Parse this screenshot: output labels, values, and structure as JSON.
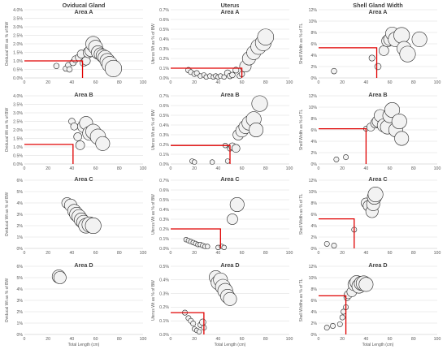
{
  "figure": {
    "rows": [
      "Area A",
      "Area B",
      "Area C",
      "Area D"
    ],
    "column_titles": [
      "Oviducal Gland",
      "Uterus",
      "Shell Gland Width"
    ],
    "x_axis_label": "Total Length (cm)",
    "colors": {
      "bubble_fill": "#f2f2f2",
      "bubble_stroke": "#262626",
      "reference_line": "#e00000",
      "grid": "#d9d9d9",
      "text": "#404040"
    }
  },
  "chart_data": [
    {
      "type": "scatter",
      "title": "Area A",
      "column_title": "Oviducal Gland",
      "xlabel": "",
      "ylabel": "Oviducal Wt as % of BW",
      "xlim": [
        0,
        100
      ],
      "ylim": [
        0,
        4
      ],
      "ytick_format": "1pct",
      "x": [
        27,
        35,
        37,
        38,
        41,
        43,
        46,
        48,
        50,
        52,
        54,
        56,
        58,
        60,
        62,
        64,
        66,
        68,
        70,
        72,
        75
      ],
      "y": [
        0.7,
        0.55,
        0.75,
        0.5,
        0.9,
        1.1,
        1.2,
        1.4,
        0.9,
        1.0,
        1.5,
        1.6,
        2.0,
        1.8,
        1.5,
        1.4,
        1.3,
        1.2,
        1.0,
        0.8,
        0.55
      ],
      "sizes": [
        1,
        1,
        1,
        1,
        1.2,
        1.3,
        1.4,
        1.6,
        1.5,
        1.7,
        2.2,
        2.5,
        3.2,
        3.0,
        2.8,
        2.6,
        2.8,
        3.0,
        3.2,
        3.4,
        3.6
      ],
      "ref": {
        "x": 49,
        "y": 1.0
      }
    },
    {
      "type": "scatter",
      "title": "Area A",
      "column_title": "Uterus",
      "xlabel": "",
      "ylabel": "Uterus Wt as % of BW",
      "xlim": [
        0,
        100
      ],
      "ylim": [
        0,
        0.7
      ],
      "ytick_format": "1pct",
      "x": [
        15,
        17,
        20,
        22,
        25,
        28,
        30,
        33,
        36,
        38,
        40,
        42,
        45,
        48,
        50,
        52,
        55,
        58,
        60,
        63,
        66,
        70,
        74,
        78,
        80
      ],
      "y": [
        0.08,
        0.06,
        0.04,
        0.05,
        0.02,
        0.03,
        0.01,
        0.02,
        0.01,
        0.02,
        0.01,
        0.02,
        0.01,
        0.05,
        0.02,
        0.03,
        0.08,
        0.02,
        0.04,
        0.12,
        0.2,
        0.26,
        0.32,
        0.36,
        0.42
      ],
      "sizes": [
        1,
        0.9,
        0.9,
        0.9,
        0.8,
        0.8,
        0.8,
        0.8,
        0.8,
        0.8,
        0.8,
        0.8,
        0.8,
        1.2,
        1,
        1,
        1.1,
        0.9,
        1,
        2.4,
        2.8,
        3.0,
        3.3,
        3.4,
        3.5
      ],
      "ref": {
        "x": 60,
        "y": 0.1
      }
    },
    {
      "type": "scatter",
      "title": "Area A",
      "column_title": "Shell Gland Width",
      "xlabel": "",
      "ylabel": "Shell Width as % of TL",
      "xlim": [
        0,
        100
      ],
      "ylim": [
        0,
        12
      ],
      "ytick_format": "0pct",
      "x": [
        13,
        45,
        50,
        55,
        58,
        60,
        62,
        65,
        70,
        72,
        75,
        85
      ],
      "y": [
        1.2,
        3.5,
        2.0,
        4.8,
        6.5,
        6.8,
        7.8,
        6.8,
        7.5,
        5.2,
        4.2,
        6.8
      ],
      "sizes": [
        1,
        1.1,
        1.2,
        2.0,
        2.4,
        2.6,
        2.8,
        3.2,
        3.4,
        3.0,
        3.4,
        3.2
      ],
      "ref": {
        "x": 49,
        "y": 5.3
      }
    },
    {
      "type": "scatter",
      "title": "Area B",
      "column_title": "",
      "xlabel": "",
      "ylabel": "Oviducal Wt as % of BW",
      "xlim": [
        0,
        100
      ],
      "ylim": [
        0,
        4
      ],
      "ytick_format": "1pct",
      "x": [
        40,
        42,
        45,
        47,
        50,
        52,
        55,
        58,
        62,
        66
      ],
      "y": [
        2.5,
        2.2,
        1.6,
        1.1,
        2.2,
        2.4,
        1.8,
        1.9,
        1.6,
        1.2
      ],
      "sizes": [
        1.2,
        1.4,
        1.6,
        1.8,
        2.6,
        2.8,
        3.0,
        3.2,
        3.3,
        3.0
      ],
      "ref": {
        "x": 41,
        "y": 1.15
      }
    },
    {
      "type": "scatter",
      "title": "Area B",
      "column_title": "",
      "xlabel": "",
      "ylabel": "Uterus Wt as % of BW",
      "xlim": [
        0,
        100
      ],
      "ylim": [
        0,
        0.7
      ],
      "ytick_format": "1pct",
      "x": [
        18,
        20,
        35,
        46,
        48,
        50,
        52,
        55,
        57,
        60,
        63,
        66,
        70,
        72,
        75
      ],
      "y": [
        0.03,
        0.02,
        0.02,
        0.19,
        0.03,
        0.16,
        0.18,
        0.16,
        0.3,
        0.34,
        0.38,
        0.42,
        0.46,
        0.35,
        0.62
      ],
      "sizes": [
        0.8,
        0.8,
        0.8,
        0.8,
        0.8,
        1.0,
        1.4,
        1.6,
        2.2,
        2.6,
        2.8,
        3.0,
        3.2,
        3.0,
        3.4
      ],
      "ref": {
        "x": 50,
        "y": 0.19
      }
    },
    {
      "type": "scatter",
      "title": "Area B",
      "column_title": "",
      "xlabel": "",
      "ylabel": "Shell Width as % of TL",
      "xlim": [
        0,
        100
      ],
      "ylim": [
        0,
        12
      ],
      "ytick_format": "0pct",
      "x": [
        15,
        23,
        40,
        44,
        48,
        50,
        52,
        55,
        58,
        60,
        62,
        65,
        68,
        70
      ],
      "y": [
        0.8,
        1.2,
        6.2,
        6.5,
        7.2,
        7.5,
        8.5,
        6.8,
        6.5,
        8.5,
        9.5,
        6.0,
        7.5,
        4.5
      ],
      "sizes": [
        0.9,
        0.9,
        0.9,
        1.6,
        2.0,
        2.4,
        2.6,
        2.8,
        3.0,
        3.0,
        3.2,
        3.0,
        3.2,
        3.0
      ],
      "ref": {
        "x": 40,
        "y": 6.2
      }
    },
    {
      "type": "scatter",
      "title": "Area C",
      "column_title": "",
      "xlabel": "",
      "ylabel": "Oviducal Wt as % of BW",
      "xlim": [
        0,
        100
      ],
      "ylim": [
        0,
        6
      ],
      "ytick_format": "0pct",
      "x": [
        36,
        39,
        42,
        44,
        46,
        48,
        50,
        52,
        55,
        58
      ],
      "y": [
        4.0,
        3.8,
        3.3,
        3.0,
        2.8,
        2.5,
        2.3,
        2.0,
        2.1,
        2.0
      ],
      "sizes": [
        2.2,
        2.6,
        2.8,
        3.0,
        3.0,
        3.0,
        3.0,
        3.2,
        3.3,
        3.4
      ],
      "ref": null
    },
    {
      "type": "scatter",
      "title": "Area C",
      "column_title": "",
      "xlabel": "",
      "ylabel": "Uterus Wt as % of BW",
      "xlim": [
        0,
        100
      ],
      "ylim": [
        0,
        0.7
      ],
      "ytick_format": "1pct",
      "x": [
        13,
        15,
        17,
        19,
        21,
        23,
        25,
        27,
        29,
        31,
        40,
        43,
        45,
        52,
        56
      ],
      "y": [
        0.09,
        0.08,
        0.07,
        0.06,
        0.05,
        0.04,
        0.04,
        0.03,
        0.02,
        0.02,
        0.01,
        0.02,
        0.01,
        0.3,
        0.45
      ],
      "sizes": [
        0.8,
        0.8,
        0.8,
        0.8,
        0.8,
        0.8,
        0.8,
        0.8,
        0.8,
        0.8,
        0.8,
        0.8,
        0.8,
        2.2,
        3.0
      ],
      "ref": {
        "x": 42,
        "y": 0.2
      }
    },
    {
      "type": "scatter",
      "title": "Area C",
      "column_title": "",
      "xlabel": "",
      "ylabel": "Shell Width as % of TL",
      "xlim": [
        0,
        100
      ],
      "ylim": [
        0,
        12
      ],
      "ytick_format": "0pct",
      "x": [
        7,
        13,
        30,
        40,
        42,
        45,
        46,
        47,
        48
      ],
      "y": [
        0.8,
        0.5,
        3.3,
        8.0,
        7.5,
        6.5,
        7.8,
        9.0,
        9.5
      ],
      "sizes": [
        0.9,
        0.9,
        0.9,
        2.0,
        2.2,
        2.6,
        2.8,
        3.0,
        3.2
      ],
      "ref": {
        "x": 30,
        "y": 5.2
      }
    },
    {
      "type": "scatter",
      "title": "Area D",
      "column_title": "",
      "xlabel": "Total Length (cm)",
      "ylabel": "Oviducal Wt as % of BW",
      "xlim": [
        0,
        100
      ],
      "ylim": [
        0,
        6
      ],
      "ytick_format": "0pct",
      "x": [
        29,
        30
      ],
      "y": [
        5.1,
        5.0
      ],
      "sizes": [
        2.8,
        2.6
      ],
      "ref": null
    },
    {
      "type": "scatter",
      "title": "Area D",
      "column_title": "",
      "xlabel": "Total Length (cm)",
      "ylabel": "Uterus Wt as % of BW",
      "xlim": [
        0,
        100
      ],
      "ylim": [
        0,
        0.5
      ],
      "ytick_format": "1pct",
      "x": [
        12,
        15,
        17,
        19,
        20,
        22,
        24,
        25,
        27,
        28,
        38,
        40,
        42,
        44,
        46,
        48,
        50
      ],
      "y": [
        0.16,
        0.12,
        0.1,
        0.08,
        0.04,
        0.03,
        0.02,
        0.07,
        0.09,
        0.05,
        0.42,
        0.38,
        0.4,
        0.35,
        0.32,
        0.28,
        0.26
      ],
      "sizes": [
        0.9,
        0.9,
        0.9,
        0.9,
        0.8,
        0.8,
        0.8,
        0.9,
        1.2,
        0.9,
        2.8,
        3.0,
        3.0,
        3.2,
        3.2,
        3.0,
        2.8
      ],
      "ref": {
        "x": 28,
        "y": 0.16
      }
    },
    {
      "type": "scatter",
      "title": "Area D",
      "column_title": "",
      "xlabel": "Total Length (cm)",
      "ylabel": "Shell Widths as % of TL",
      "xlim": [
        0,
        100
      ],
      "ylim": [
        0,
        12
      ],
      "ytick_format": "0pct",
      "x": [
        7,
        12,
        18,
        20,
        21,
        23,
        24,
        25,
        28,
        30,
        32,
        34,
        36,
        38,
        40
      ],
      "y": [
        1.2,
        1.5,
        1.8,
        3.0,
        4.0,
        4.8,
        6.5,
        7.0,
        7.5,
        8.8,
        9.2,
        8.5,
        9.0,
        9.0,
        8.8
      ],
      "sizes": [
        0.9,
        0.9,
        0.9,
        0.9,
        0.9,
        0.9,
        1.2,
        1.6,
        2.0,
        2.6,
        2.8,
        3.0,
        3.0,
        3.2,
        3.0
      ],
      "ref": {
        "x": 23,
        "y": 6.8
      }
    }
  ]
}
